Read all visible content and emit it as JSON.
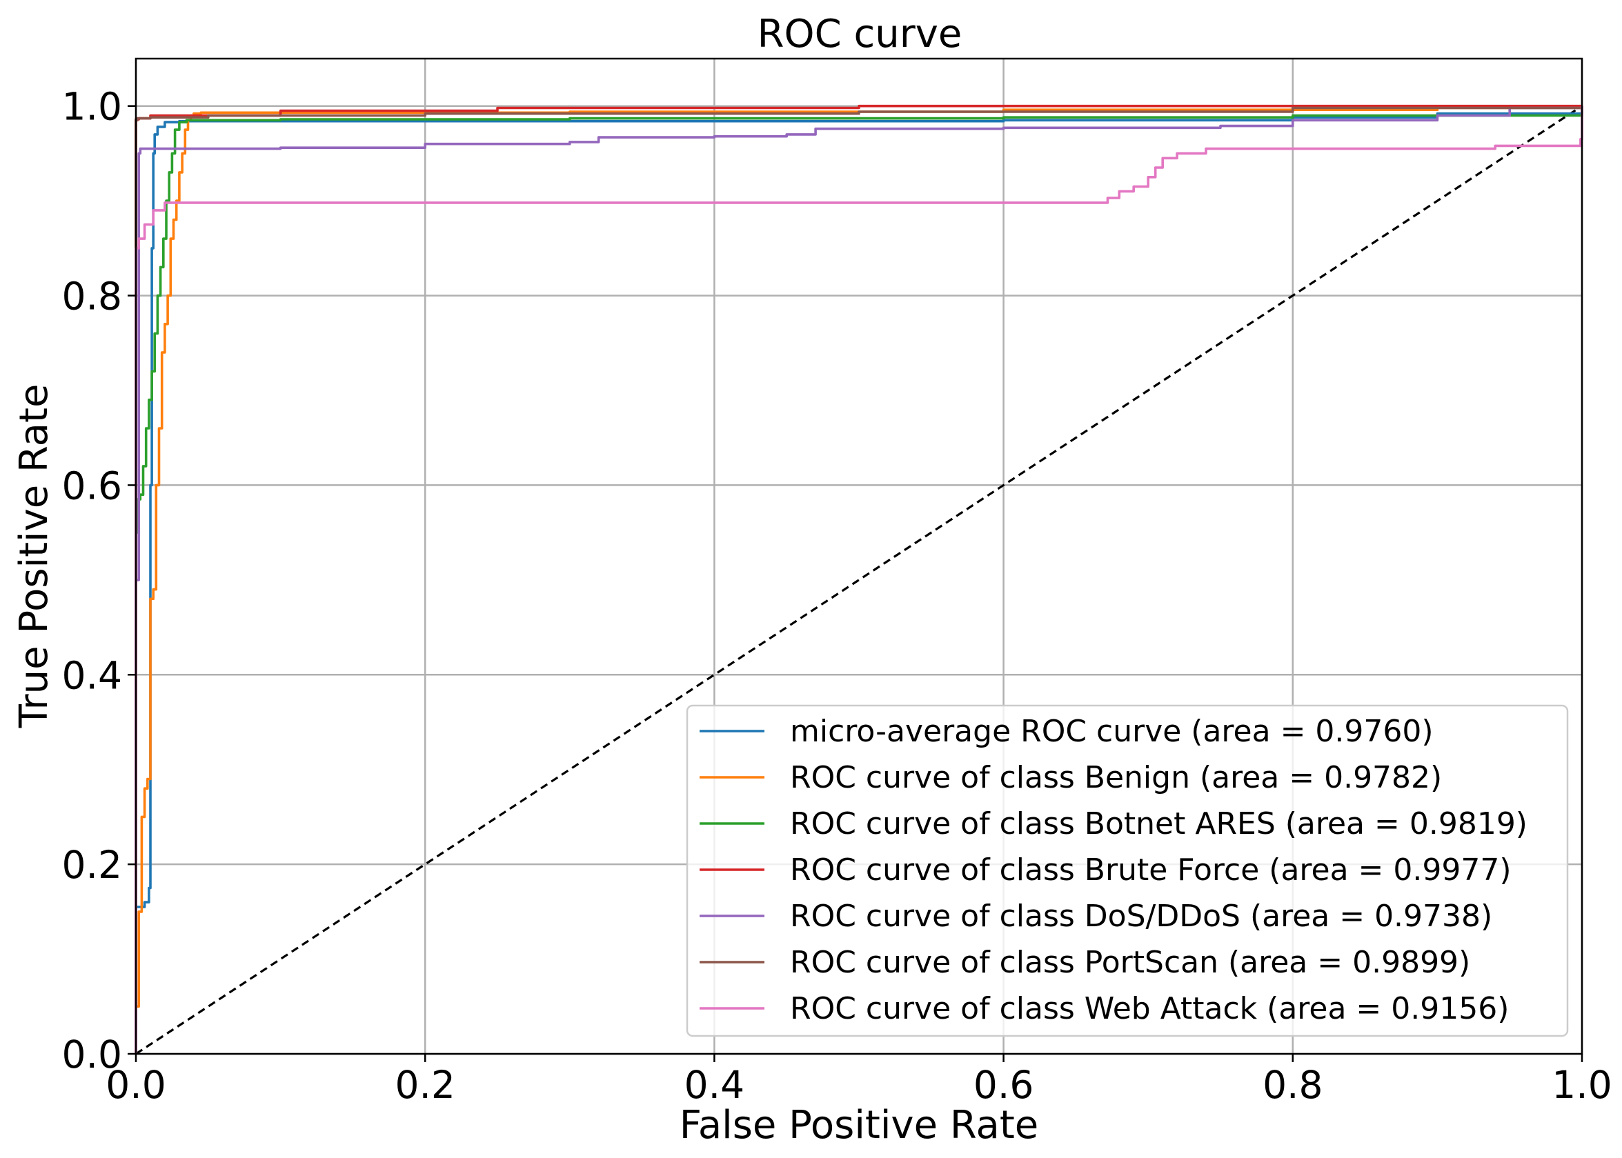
{
  "chart_data": {
    "type": "line",
    "title": "ROC curve",
    "xlabel": "False Positive Rate",
    "ylabel": "True Positive Rate",
    "xlim": [
      0.0,
      1.0
    ],
    "ylim": [
      0.0,
      1.05
    ],
    "xticks": [
      0.0,
      0.2,
      0.4,
      0.6,
      0.8,
      1.0
    ],
    "yticks": [
      0.0,
      0.2,
      0.4,
      0.6,
      0.8,
      1.0
    ],
    "xtick_labels": [
      "0.0",
      "0.2",
      "0.4",
      "0.6",
      "0.8",
      "1.0"
    ],
    "ytick_labels": [
      "0.0",
      "0.2",
      "0.4",
      "0.6",
      "0.8",
      "1.0"
    ],
    "grid": true,
    "legend_position": "lower-right",
    "chance_line": {
      "name": "chance",
      "color": "#000000",
      "style": "dashed",
      "x": [
        0.0,
        1.0
      ],
      "y": [
        0.0,
        1.0
      ]
    },
    "series": [
      {
        "name": "micro-average ROC curve (area = 0.9760)",
        "color": "#1f77b4",
        "x": [
          0,
          0.0,
          0.006,
          0.009,
          0.01,
          0.01,
          0.011,
          0.012,
          0.013,
          0.015,
          0.02,
          0.03,
          0.05,
          0.3,
          0.6,
          0.8,
          0.9,
          1.0
        ],
        "y": [
          0,
          0.155,
          0.16,
          0.175,
          0.3,
          0.6,
          0.85,
          0.95,
          0.97,
          0.978,
          0.983,
          0.984,
          0.984,
          0.984,
          0.985,
          0.988,
          0.992,
          1.0
        ]
      },
      {
        "name": "ROC curve of class Benign (area = 0.9782)",
        "color": "#ff7f0e",
        "x": [
          0,
          0.0,
          0.002,
          0.004,
          0.006,
          0.008,
          0.01,
          0.012,
          0.014,
          0.016,
          0.018,
          0.02,
          0.022,
          0.024,
          0.026,
          0.028,
          0.03,
          0.032,
          0.034,
          0.036,
          0.038,
          0.04,
          0.045,
          0.05,
          0.1,
          0.3,
          0.6,
          0.9,
          1.0
        ],
        "y": [
          0,
          0.05,
          0.15,
          0.25,
          0.28,
          0.29,
          0.48,
          0.49,
          0.6,
          0.66,
          0.74,
          0.77,
          0.8,
          0.86,
          0.88,
          0.9,
          0.93,
          0.95,
          0.975,
          0.985,
          0.99,
          0.992,
          0.993,
          0.993,
          0.993,
          0.994,
          0.996,
          0.998,
          1.0
        ]
      },
      {
        "name": "ROC curve of class Botnet ARES (area = 0.9819)",
        "color": "#2ca02c",
        "x": [
          0,
          0.0,
          0.001,
          0.003,
          0.005,
          0.007,
          0.009,
          0.011,
          0.013,
          0.015,
          0.017,
          0.019,
          0.021,
          0.023,
          0.025,
          0.027,
          0.03,
          0.035,
          0.1,
          0.3,
          0.6,
          0.8,
          1.0
        ],
        "y": [
          0,
          0.55,
          0.585,
          0.59,
          0.62,
          0.66,
          0.69,
          0.72,
          0.76,
          0.8,
          0.83,
          0.86,
          0.9,
          0.93,
          0.95,
          0.975,
          0.983,
          0.985,
          0.986,
          0.987,
          0.988,
          0.99,
          0.997
        ]
      },
      {
        "name": "ROC curve of class Brute Force (area = 0.9977)",
        "color": "#d62728",
        "x": [
          0,
          0.0,
          0.002,
          0.01,
          0.1,
          0.25,
          0.5,
          0.7,
          0.9,
          1.0
        ],
        "y": [
          0,
          0.986,
          0.987,
          0.99,
          0.995,
          0.998,
          1.0,
          1.0,
          1.0,
          1.0
        ]
      },
      {
        "name": "ROC curve of class DoS/DDoS (area = 0.9738)",
        "color": "#9467bd",
        "x": [
          0,
          0.0,
          0.002,
          0.003,
          0.1,
          0.2,
          0.3,
          0.32,
          0.4,
          0.45,
          0.47,
          0.6,
          0.75,
          0.8,
          0.9,
          0.95,
          1.0
        ],
        "y": [
          0,
          0.5,
          0.95,
          0.955,
          0.956,
          0.96,
          0.962,
          0.967,
          0.968,
          0.97,
          0.976,
          0.977,
          0.979,
          0.985,
          0.99,
          0.998,
          1.0
        ]
      },
      {
        "name": "ROC curve of class PortScan (area = 0.9899)",
        "color": "#8c564b",
        "x": [
          0,
          0.0,
          0.001,
          0.01,
          0.05,
          0.2,
          0.5,
          0.8,
          1.0
        ],
        "y": [
          0,
          0.985,
          0.987,
          0.988,
          0.99,
          0.992,
          0.994,
          0.998,
          1.0
        ]
      },
      {
        "name": "ROC curve of class Web Attack (area = 0.9156)",
        "color": "#e377c2",
        "x": [
          0,
          0.0,
          0.002,
          0.006,
          0.012,
          0.02,
          0.04,
          0.3,
          0.6,
          0.67,
          0.672,
          0.68,
          0.69,
          0.7,
          0.705,
          0.71,
          0.72,
          0.74,
          0.75,
          0.8,
          0.9,
          0.94,
          0.999,
          0.999,
          1.0
        ],
        "y": [
          0,
          0.85,
          0.86,
          0.875,
          0.89,
          0.898,
          0.898,
          0.898,
          0.898,
          0.898,
          0.903,
          0.91,
          0.915,
          0.925,
          0.935,
          0.945,
          0.95,
          0.955,
          0.955,
          0.955,
          0.955,
          0.958,
          0.96,
          0.965,
          1.0
        ]
      }
    ]
  }
}
